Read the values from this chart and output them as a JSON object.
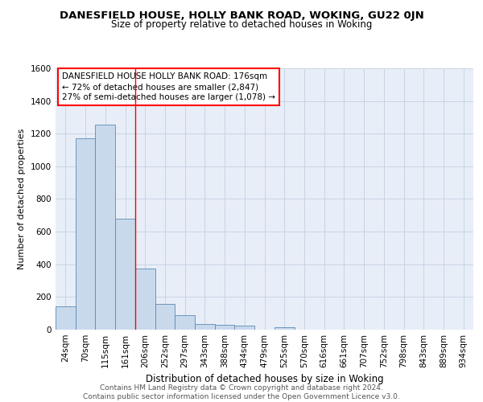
{
  "title": "DANESFIELD HOUSE, HOLLY BANK ROAD, WOKING, GU22 0JN",
  "subtitle": "Size of property relative to detached houses in Woking",
  "xlabel": "Distribution of detached houses by size in Woking",
  "ylabel": "Number of detached properties",
  "bin_labels": [
    "24sqm",
    "70sqm",
    "115sqm",
    "161sqm",
    "206sqm",
    "252sqm",
    "297sqm",
    "343sqm",
    "388sqm",
    "434sqm",
    "479sqm",
    "525sqm",
    "570sqm",
    "616sqm",
    "661sqm",
    "707sqm",
    "752sqm",
    "798sqm",
    "843sqm",
    "889sqm",
    "934sqm"
  ],
  "bar_heights": [
    145,
    1170,
    1255,
    680,
    375,
    160,
    90,
    35,
    30,
    25,
    0,
    15,
    0,
    0,
    0,
    0,
    0,
    0,
    0,
    0,
    0
  ],
  "bar_color": "#c9d9ec",
  "bar_edge_color": "#5a8ab5",
  "grid_color": "#c8d4e4",
  "background_color": "#e8eef8",
  "red_line_x": 3.5,
  "annotation_text": "DANESFIELD HOUSE HOLLY BANK ROAD: 176sqm\n← 72% of detached houses are smaller (2,847)\n27% of semi-detached houses are larger (1,078) →",
  "ylim": [
    0,
    1600
  ],
  "yticks": [
    0,
    200,
    400,
    600,
    800,
    1000,
    1200,
    1400,
    1600
  ],
  "footer_text": "Contains HM Land Registry data © Crown copyright and database right 2024.\nContains public sector information licensed under the Open Government Licence v3.0.",
  "title_fontsize": 9.5,
  "subtitle_fontsize": 8.5,
  "xlabel_fontsize": 8.5,
  "ylabel_fontsize": 8,
  "annotation_fontsize": 7.5,
  "footer_fontsize": 6.5,
  "tick_fontsize": 7.5
}
